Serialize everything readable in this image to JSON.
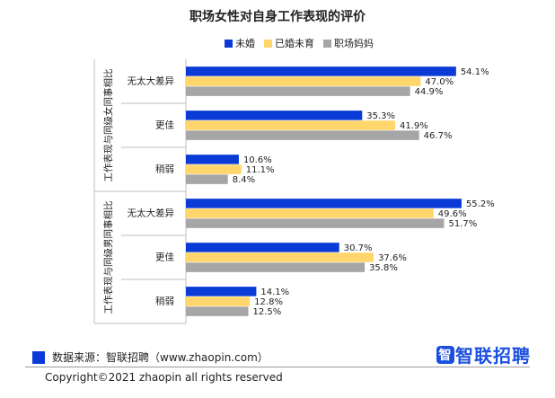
{
  "chart_data": {
    "type": "bar",
    "orientation": "horizontal",
    "title": "职场女性对自身工作表现的评价",
    "groups": [
      {
        "label": "工作表现与同级女同事相比",
        "categories": [
          "无太大差异",
          "更佳",
          "稍弱"
        ]
      },
      {
        "label": "工作表现与同级男同事相比",
        "categories": [
          "无太大差异",
          "更佳",
          "稍弱"
        ]
      }
    ],
    "series": [
      {
        "name": "未婚",
        "color": "#0b3bd6",
        "values": [
          54.1,
          35.3,
          10.6,
          55.2,
          30.7,
          14.1
        ]
      },
      {
        "name": "已婚未育",
        "color": "#ffd66b",
        "values": [
          47.0,
          41.9,
          11.1,
          49.6,
          37.6,
          12.8
        ]
      },
      {
        "name": "职场妈妈",
        "color": "#a6a6a6",
        "values": [
          44.9,
          46.7,
          8.4,
          51.7,
          35.8,
          12.5
        ]
      }
    ],
    "value_suffix": "%",
    "xlim": [
      0,
      70
    ],
    "legend": "top-right",
    "grid": false
  },
  "footer": {
    "source": "数据来源：智联招聘（www.zhaopin.com）",
    "copyright": "Copyright©2021 zhaopin all rights reserved",
    "brand": "智联招聘",
    "brand_badge": "智"
  }
}
